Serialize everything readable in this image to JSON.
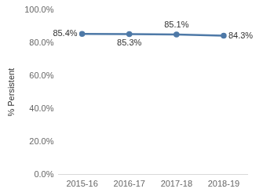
{
  "chart_data": {
    "type": "line",
    "y_label": "% Persistent",
    "categories": [
      "2015-16",
      "2016-17",
      "2017-18",
      "2018-19"
    ],
    "values": [
      85.4,
      85.3,
      85.1,
      84.3
    ],
    "value_labels": [
      "85.4%",
      "85.3%",
      "85.1%",
      "84.3%"
    ],
    "color": "#4e79a7",
    "marker": "circle",
    "ylim": [
      0,
      100
    ],
    "yticks": [
      {
        "value": 0,
        "label": "0.0%"
      },
      {
        "value": 20,
        "label": "20.0%"
      },
      {
        "value": 40,
        "label": "40.0%"
      },
      {
        "value": 60,
        "label": "60.0%"
      },
      {
        "value": 80,
        "label": "80.0%"
      },
      {
        "value": 100,
        "label": "100.0%"
      }
    ],
    "grid": false,
    "data_labels": true
  }
}
